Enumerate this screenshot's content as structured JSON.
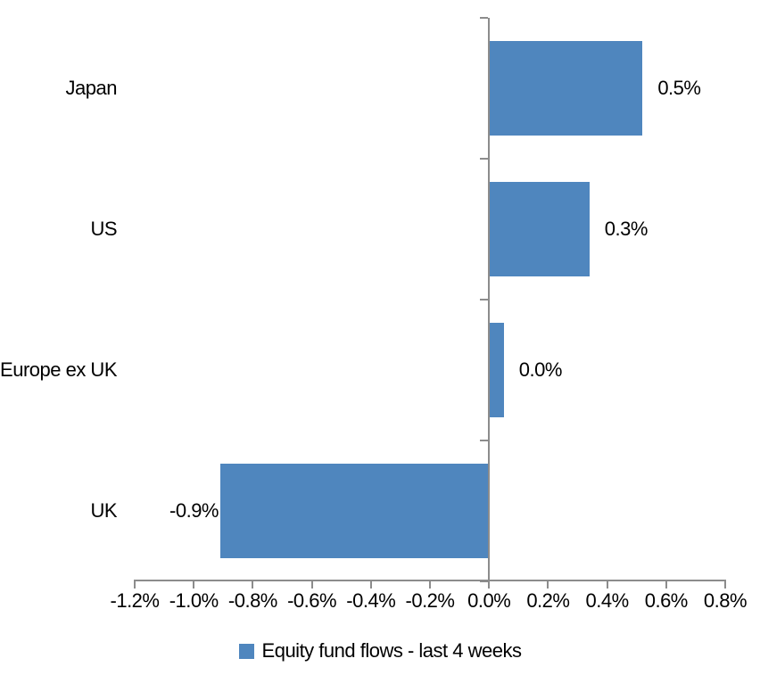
{
  "chart_data": {
    "type": "bar",
    "orientation": "horizontal",
    "title": "",
    "xlabel": "",
    "ylabel": "",
    "grid": false,
    "categories": [
      "Japan",
      "US",
      "Europe ex UK",
      "UK"
    ],
    "series": [
      {
        "name": "Equity fund flows - last 4 weeks",
        "points": [
          {
            "category": "Japan",
            "value": 0.52,
            "label": "0.5%"
          },
          {
            "category": "US",
            "value": 0.34,
            "label": "0.3%"
          },
          {
            "category": "Europe ex UK",
            "value": 0.05,
            "label": "0.0%"
          },
          {
            "category": "UK",
            "value": -0.91,
            "label": "-0.9%"
          }
        ]
      }
    ],
    "x_axis": {
      "min": -1.2,
      "max": 0.8,
      "step": 0.2,
      "tick_labels": [
        "-1.2%",
        "-1.0%",
        "-0.8%",
        "-0.6%",
        "-0.4%",
        "-0.2%",
        "0.0%",
        "0.2%",
        "0.4%",
        "0.6%",
        "0.8%"
      ]
    },
    "legend": {
      "position": "bottom",
      "entries": [
        {
          "label": "Equity fund flows - last 4 weeks",
          "color": "#4f86be"
        }
      ]
    },
    "colors": {
      "bar": "#4f86be",
      "axis": "#8c8c8c",
      "text": "#000000",
      "background": "#ffffff"
    }
  }
}
